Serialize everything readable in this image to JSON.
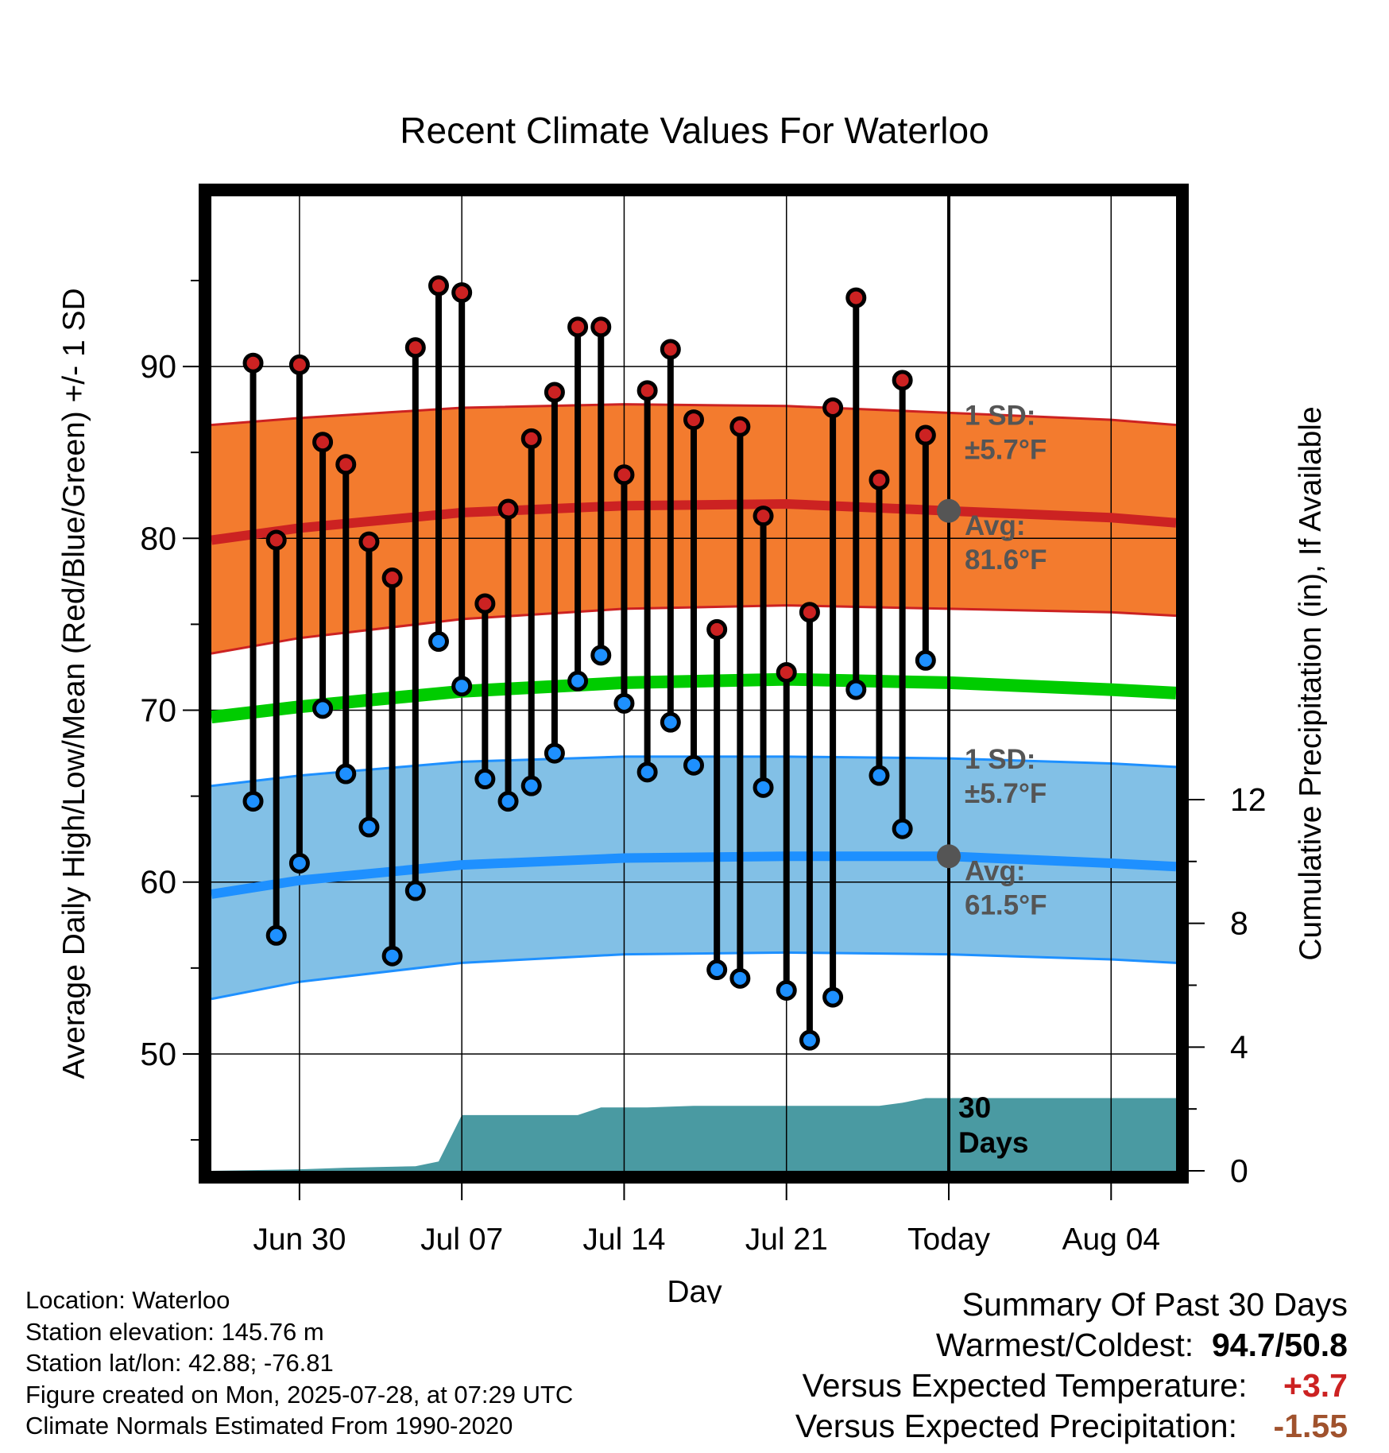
{
  "chart_data": {
    "type": "line",
    "title": "Recent Climate Values For Waterloo",
    "xlabel": "Day",
    "ylabel_left": "Average Daily High/Low/Mean (Red/Blue/Green) +/- 1 SD",
    "ylabel_right": "Cumulative Precipitation (in), If Available",
    "x_ticks": [
      "Jun 30",
      "Jul 07",
      "Jul 14",
      "Jul 21",
      "Today",
      "Aug 04"
    ],
    "y_ticks_left": [
      "50",
      "60",
      "70",
      "80",
      "90"
    ],
    "y_ticks_right": [
      "0",
      "4",
      "8",
      "12"
    ],
    "ylim_left": [
      43.2,
      99.9
    ],
    "ylim_right": [
      0,
      31.5
    ],
    "x_range_days": [
      -31.8,
      9.8
    ],
    "x_tick_days": [
      -28,
      -21,
      -14,
      -7,
      0,
      7
    ],
    "grid": true,
    "days": [
      -30,
      -29,
      -28,
      -27,
      -26,
      -25,
      -24,
      -23,
      -22,
      -21,
      -20,
      -19,
      -18,
      -17,
      -16,
      -15,
      -14,
      -13,
      -12,
      -11,
      -10,
      -9,
      -8,
      -7,
      -6,
      -5,
      -4,
      -3,
      -2,
      -1
    ],
    "highs": [
      90.2,
      79.9,
      90.1,
      85.6,
      84.3,
      79.8,
      77.7,
      91.1,
      94.7,
      94.3,
      76.2,
      81.7,
      85.8,
      88.5,
      92.3,
      92.3,
      83.7,
      88.6,
      91.0,
      86.9,
      74.7,
      86.5,
      81.3,
      72.2,
      75.7,
      87.6,
      94.0,
      83.4,
      89.2,
      86.0
    ],
    "lows": [
      64.7,
      56.9,
      61.1,
      70.1,
      66.3,
      63.2,
      55.7,
      59.5,
      74.0,
      71.4,
      66.0,
      64.7,
      65.6,
      67.5,
      71.7,
      73.2,
      70.4,
      66.4,
      69.3,
      66.8,
      54.9,
      54.4,
      65.5,
      53.7,
      50.8,
      53.3,
      71.2,
      66.2,
      63.1,
      72.9
    ],
    "normals": {
      "days": [
        -31.8,
        -28,
        -21,
        -14,
        -7,
        0,
        7,
        9.8
      ],
      "avg_high": [
        79.9,
        80.6,
        81.5,
        81.9,
        82.0,
        81.6,
        81.2,
        80.9
      ],
      "high_upper": [
        86.6,
        87.0,
        87.6,
        87.8,
        87.7,
        87.3,
        86.9,
        86.6
      ],
      "high_lower": [
        73.3,
        74.2,
        75.3,
        75.9,
        76.1,
        75.9,
        75.7,
        75.5
      ],
      "avg_mean": [
        69.6,
        70.2,
        71.1,
        71.6,
        71.8,
        71.6,
        71.2,
        71.0
      ],
      "avg_low": [
        59.3,
        60.1,
        61.0,
        61.4,
        61.5,
        61.5,
        61.1,
        60.9
      ],
      "low_upper": [
        65.6,
        66.2,
        67.0,
        67.3,
        67.3,
        67.2,
        66.9,
        66.7
      ],
      "low_lower": [
        53.2,
        54.2,
        55.3,
        55.8,
        55.9,
        55.8,
        55.5,
        55.3
      ]
    },
    "precip_cumulative": {
      "days": [
        -31.8,
        -28,
        -26,
        -23,
        -22,
        -21,
        -16,
        -15,
        -13,
        -11,
        -3,
        -2,
        -1,
        9.8
      ],
      "values": [
        0.0,
        0.05,
        0.1,
        0.15,
        0.3,
        1.8,
        1.8,
        2.05,
        2.05,
        2.1,
        2.1,
        2.2,
        2.35,
        2.35
      ]
    },
    "colors": {
      "high": "#cc2222",
      "low": "#1e90ff",
      "mean": "#00cc00",
      "high_band": "#f37b2e",
      "low_band": "#82c0e6",
      "precip": "#4a9aa2",
      "marker": "#555555"
    },
    "annotations": {
      "high_sd": [
        "1 SD:",
        "±5.7°F"
      ],
      "high_avg": [
        "Avg:",
        "81.6°F"
      ],
      "low_sd": [
        "1 SD:",
        "±5.7°F"
      ],
      "low_avg": [
        "Avg:",
        "61.5°F"
      ],
      "window": [
        "30",
        "Days"
      ]
    }
  },
  "footer": {
    "location": "Location: Waterloo",
    "elevation": "Station elevation: 145.76 m",
    "latlon": "Station lat/lon: 42.88; -76.81",
    "created": "Figure created on Mon, 2025-07-28, at 07:29 UTC",
    "normals": "Climate Normals Estimated From 1990-2020"
  },
  "summary": {
    "title": "Summary Of Past 30 Days",
    "warm_cold_label": "Warmest/Coldest:",
    "warm": "94.7",
    "sep": "/",
    "cold": "50.8",
    "temp_label": "Versus Expected Temperature:",
    "temp_value": "+3.7",
    "precip_label": "Versus Expected Precipitation:",
    "precip_value": "-1.55"
  }
}
